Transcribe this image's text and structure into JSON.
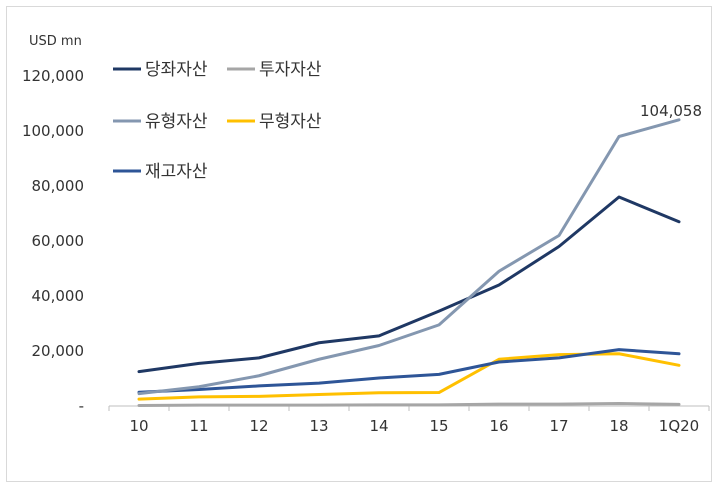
{
  "chart_data": {
    "type": "line",
    "unit_label": "USD mn",
    "categories": [
      "10",
      "11",
      "12",
      "13",
      "14",
      "15",
      "16",
      "17",
      "18",
      "1Q20"
    ],
    "y_ticks": [
      "120,000",
      "100,000",
      "80,000",
      "60,000",
      "40,000",
      "20,000",
      "-"
    ],
    "ylim": [
      0,
      120000
    ],
    "grid": false,
    "series": [
      {
        "name": "당좌자산",
        "color": "#1f3864",
        "values": [
          12500,
          15500,
          17500,
          23000,
          25500,
          34500,
          44000,
          58000,
          76000,
          67000
        ]
      },
      {
        "name": "투자자산",
        "color": "#a6a6a6",
        "values": [
          200,
          300,
          300,
          300,
          400,
          400,
          700,
          700,
          900,
          600
        ]
      },
      {
        "name": "유형자산",
        "color": "#8497b0",
        "values": [
          4500,
          7000,
          11000,
          17000,
          22000,
          29500,
          49000,
          62000,
          98000,
          104058
        ]
      },
      {
        "name": "무형자산",
        "color": "#ffc000",
        "values": [
          2500,
          3300,
          3500,
          4200,
          4800,
          4900,
          17000,
          18700,
          19000,
          14800
        ]
      },
      {
        "name": "재고자산",
        "color": "#2e5597",
        "values": [
          5000,
          6000,
          7300,
          8300,
          10200,
          11500,
          16000,
          17500,
          20500,
          19000
        ]
      }
    ],
    "annotations": [
      {
        "text": "104,058",
        "series": "유형자산",
        "category": "1Q20"
      }
    ],
    "legend_placement": "top-left"
  }
}
